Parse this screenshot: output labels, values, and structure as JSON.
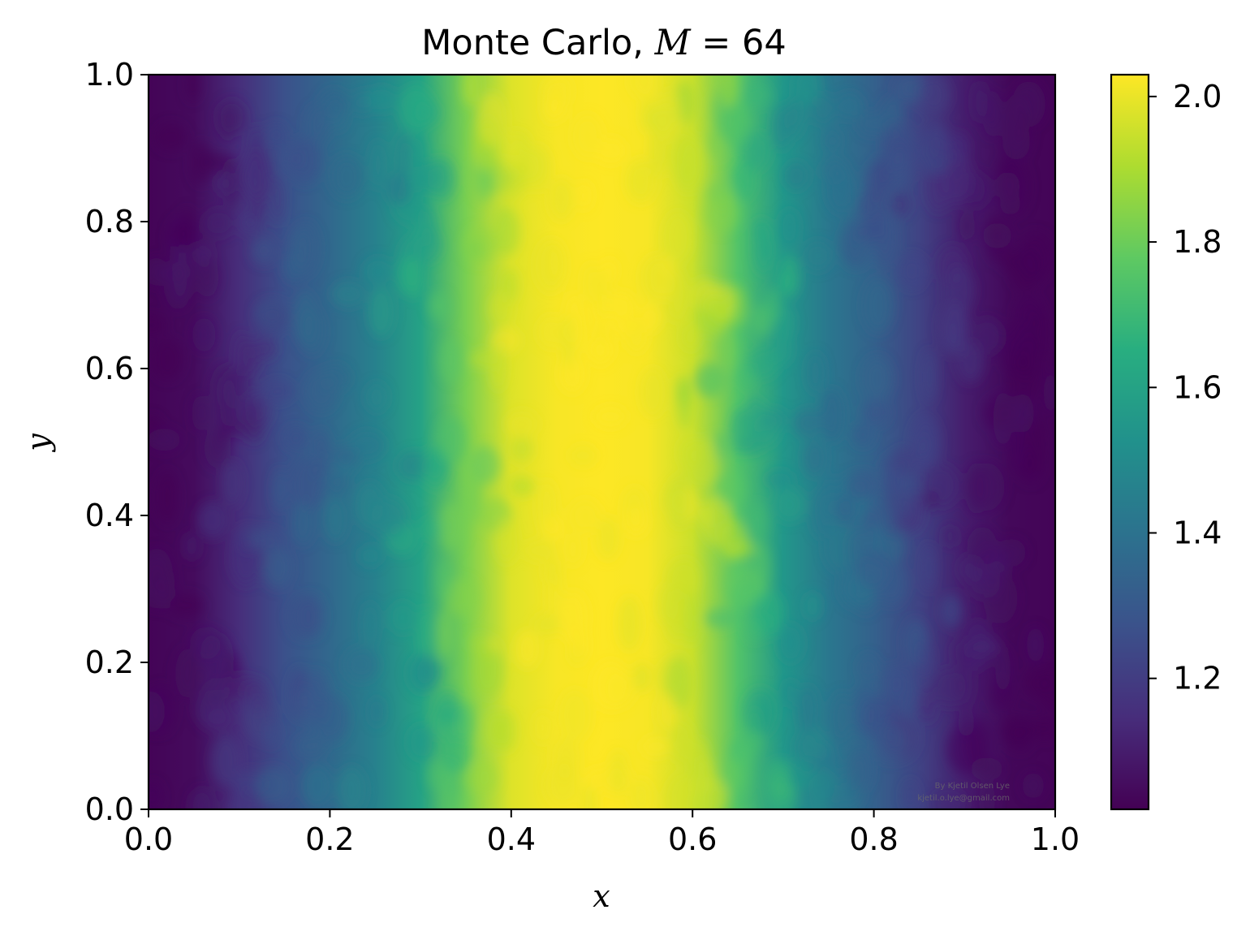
{
  "chart_data": {
    "type": "heatmap",
    "title": "Monte Carlo, ",
    "title_math": {
      "symbol": "M",
      "expr": " = 64"
    },
    "xlabel": "x",
    "ylabel": "y",
    "xlim": [
      0.0,
      1.0
    ],
    "ylim": [
      0.0,
      1.0
    ],
    "x_ticks": [
      "0.0",
      "0.2",
      "0.4",
      "0.6",
      "0.8",
      "1.0"
    ],
    "y_ticks": [
      "0.0",
      "0.2",
      "0.4",
      "0.6",
      "0.8",
      "1.0"
    ],
    "colormap": "viridis",
    "color_range": [
      1.02,
      2.03
    ],
    "colorbar_ticks": [
      "1.2",
      "1.4",
      "1.6",
      "1.8",
      "2.0"
    ],
    "field": {
      "description_of_values": "value by x, roughly constant along y, with noisy fluctuations",
      "x": [
        0.0,
        0.05,
        0.1,
        0.15,
        0.2,
        0.25,
        0.3,
        0.35,
        0.4,
        0.45,
        0.5,
        0.55,
        0.6,
        0.65,
        0.7,
        0.75,
        0.8,
        0.85,
        0.9,
        0.95,
        1.0
      ],
      "value": [
        1.03,
        1.05,
        1.15,
        1.27,
        1.36,
        1.46,
        1.6,
        1.82,
        1.98,
        2.02,
        2.03,
        2.02,
        1.95,
        1.75,
        1.55,
        1.42,
        1.33,
        1.22,
        1.1,
        1.04,
        1.03
      ]
    },
    "watermark": [
      "By Kjetil Olsen Lye",
      "kjetil.o.lye@gmail.com"
    ]
  }
}
